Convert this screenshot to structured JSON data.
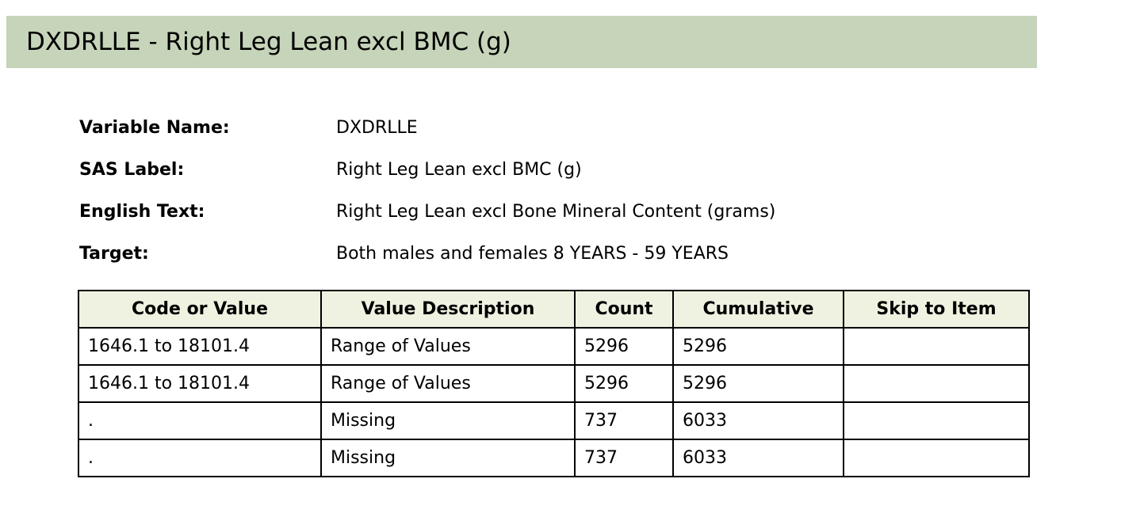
{
  "title": "DXDRLLE - Right Leg Lean excl BMC (g)",
  "meta": [
    {
      "label": "Variable Name:",
      "value": "DXDRLLE"
    },
    {
      "label": "SAS Label:",
      "value": "Right Leg Lean excl BMC (g)"
    },
    {
      "label": "English Text:",
      "value": "Right Leg Lean excl Bone Mineral Content (grams)"
    },
    {
      "label": "Target:",
      "value": "Both males and females 8 YEARS - 59 YEARS"
    }
  ],
  "table": {
    "headers": [
      "Code or Value",
      "Value Description",
      "Count",
      "Cumulative",
      "Skip to Item"
    ],
    "rows": [
      [
        "1646.1 to 18101.4",
        "Range of Values",
        "5296",
        "5296",
        ""
      ],
      [
        "1646.1 to 18101.4",
        "Range of Values",
        "5296",
        "5296",
        ""
      ],
      [
        ".",
        "Missing",
        "737",
        "6033",
        ""
      ],
      [
        ".",
        "Missing",
        "737",
        "6033",
        ""
      ]
    ]
  },
  "colors": {
    "title_background": "#c6d4b9",
    "header_background": "#f0f2e1"
  }
}
